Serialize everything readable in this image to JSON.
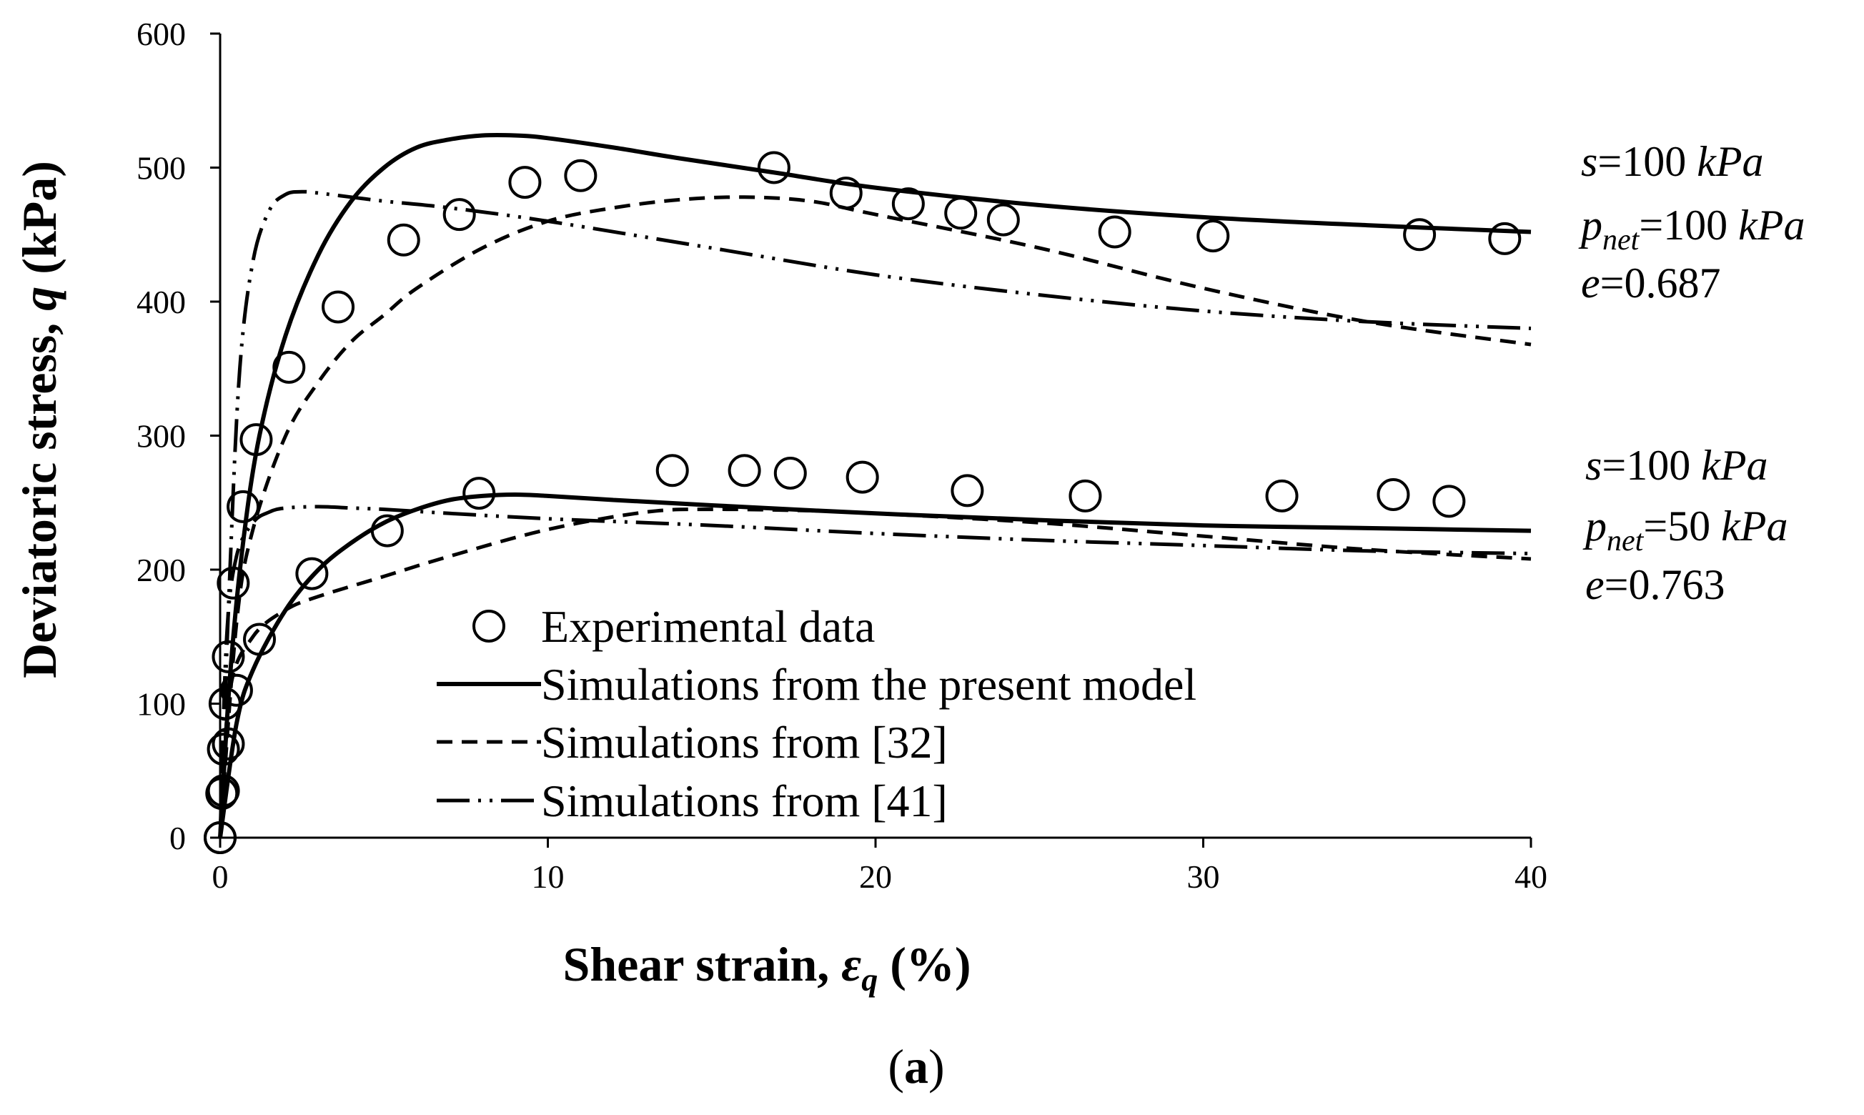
{
  "chart_data": {
    "type": "line",
    "xlabel_prefix": "Shear strain, ",
    "xlabel_symbol": "ε",
    "xlabel_subscript": "q",
    "xlabel_suffix": " (%)",
    "ylabel_prefix": "Deviatoric stress, ",
    "ylabel_symbol": "q",
    "ylabel_suffix": " (kPa)",
    "xlim": [
      0,
      40
    ],
    "ylim": [
      0,
      600
    ],
    "xticks": [
      0,
      10,
      20,
      30,
      40
    ],
    "yticks": [
      0,
      100,
      200,
      300,
      400,
      500,
      600
    ],
    "caption_open": "(",
    "caption_letter": "a",
    "caption_close": ")",
    "legend": {
      "experimental": "Experimental data",
      "present": "Simulations from the present model",
      "ref32": "Simulations from [32]",
      "ref41": "Simulations from [41]"
    },
    "conditions": [
      {
        "s_sym": "s",
        "s_val": "=100 ",
        "s_unit": "kPa",
        "p_sym": "p",
        "p_sub": "net",
        "p_val": "=100 ",
        "p_unit": "kPa",
        "e_sym": "e",
        "e_val": "=0.687"
      },
      {
        "s_sym": "s",
        "s_val": "=100 ",
        "s_unit": "kPa",
        "p_sym": "p",
        "p_sub": "net",
        "p_val": "=50 ",
        "p_unit": "kPa",
        "e_sym": "e",
        "e_val": "=0.763"
      }
    ],
    "series": [
      {
        "name": "Experimental data (p_net=100 kPa)",
        "style": "marker",
        "x": [
          0,
          0.05,
          0.1,
          0.15,
          0.25,
          0.4,
          0.7,
          1.1,
          2.1,
          3.6,
          5.6,
          7.3,
          9.3,
          11,
          16.9,
          19.1,
          21,
          22.6,
          23.9,
          27.3,
          30.3,
          36.6,
          39.2
        ],
        "y": [
          0,
          33,
          66,
          100,
          135,
          190,
          247,
          297,
          351,
          396,
          446,
          465,
          489,
          494,
          500,
          481,
          473,
          466,
          461,
          452,
          449,
          450,
          447
        ]
      },
      {
        "name": "Experimental data (p_net=50 kPa)",
        "style": "marker",
        "x": [
          0,
          0.1,
          0.25,
          0.5,
          1.2,
          2.8,
          5.1,
          7.9,
          13.8,
          16,
          17.4,
          19.6,
          22.8,
          26.4,
          32.4,
          35.8,
          37.5
        ],
        "y": [
          0,
          35,
          70,
          110,
          148,
          197,
          229,
          257,
          274,
          274,
          272,
          269,
          259,
          255,
          255,
          256,
          251
        ]
      },
      {
        "name": "Present model (p_net=100 kPa)",
        "style": "solid",
        "x": [
          0,
          0.3,
          0.7,
          1.2,
          2,
          3,
          4,
          5,
          6,
          7,
          8,
          9,
          10,
          12,
          14,
          17,
          20,
          25,
          30,
          35,
          40
        ],
        "y": [
          0,
          120,
          220,
          300,
          375,
          435,
          475,
          500,
          515,
          521,
          524,
          524,
          522,
          515,
          507,
          496,
          485,
          472,
          463,
          457,
          452
        ]
      },
      {
        "name": "Present model (p_net=50 kPa)",
        "style": "solid",
        "x": [
          0,
          0.5,
          1,
          2,
          3,
          4,
          5,
          6,
          7,
          8,
          9,
          10,
          12,
          15,
          20,
          25,
          30,
          35,
          40
        ],
        "y": [
          0,
          85,
          125,
          170,
          200,
          220,
          235,
          245,
          252,
          255,
          256,
          255,
          252,
          248,
          242,
          237,
          233,
          231,
          229
        ]
      },
      {
        "name": "Ref [32] (p_net=100 kPa)",
        "style": "dashed",
        "x": [
          0,
          0.5,
          1,
          2,
          3,
          4,
          5,
          6,
          8,
          10,
          12,
          14,
          16,
          18,
          20,
          25,
          30,
          35,
          40
        ],
        "y": [
          0,
          160,
          230,
          300,
          340,
          370,
          390,
          410,
          440,
          460,
          470,
          476,
          478,
          475,
          465,
          440,
          410,
          385,
          368
        ]
      },
      {
        "name": "Ref [32] (p_net=50 kPa)",
        "style": "dashed",
        "x": [
          0,
          0.3,
          1,
          2,
          3,
          5,
          7,
          10,
          13,
          15,
          18,
          20,
          25,
          30,
          35,
          40
        ],
        "y": [
          0,
          110,
          150,
          170,
          180,
          195,
          210,
          230,
          243,
          245,
          244,
          242,
          235,
          225,
          215,
          208
        ]
      },
      {
        "name": "Ref [41] (p_net=100 kPa)",
        "style": "dashdot",
        "x": [
          0,
          0.3,
          0.6,
          1,
          1.5,
          2,
          2.5,
          3,
          4,
          5,
          7,
          10,
          15,
          20,
          25,
          30,
          35,
          40
        ],
        "y": [
          0,
          200,
          350,
          430,
          468,
          480,
          482,
          481,
          478,
          475,
          470,
          460,
          440,
          420,
          405,
          393,
          385,
          380
        ]
      },
      {
        "name": "Ref [41] (p_net=50 kPa)",
        "style": "dashdot",
        "x": [
          0,
          0.2,
          0.5,
          1,
          1.5,
          2,
          3,
          4,
          5,
          7,
          10,
          15,
          20,
          25,
          30,
          35,
          40
        ],
        "y": [
          0,
          150,
          210,
          235,
          243,
          246,
          247,
          246,
          245,
          242,
          238,
          233,
          227,
          222,
          218,
          214,
          212
        ]
      }
    ]
  }
}
